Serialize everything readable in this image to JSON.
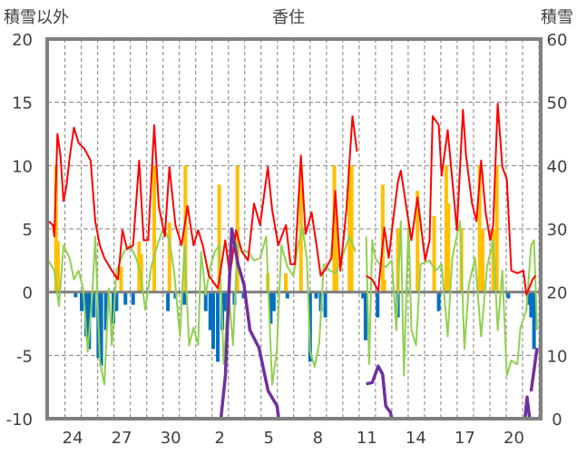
{
  "chart_data": {
    "type": "line",
    "title": "香住",
    "ylabel_left": "積雪以外",
    "ylabel_right": "積雪",
    "ylim_left": [
      -10,
      20
    ],
    "ylim_right": [
      0,
      60
    ],
    "yticks_left": [
      -10,
      -5,
      0,
      5,
      10,
      15,
      20
    ],
    "yticks_right": [
      0,
      10,
      20,
      30,
      40,
      50,
      60
    ],
    "xlim_days": [
      0,
      30.2
    ],
    "xticks": [
      {
        "label": "24",
        "day": 1.56
      },
      {
        "label": "27",
        "day": 4.56
      },
      {
        "label": "30",
        "day": 7.56
      },
      {
        "label": "2",
        "day": 10.56
      },
      {
        "label": "5",
        "day": 13.56
      },
      {
        "label": "8",
        "day": 16.56
      },
      {
        "label": "11",
        "day": 19.56
      },
      {
        "label": "14",
        "day": 22.56
      },
      {
        "label": "17",
        "day": 25.56
      },
      {
        "label": "20",
        "day": 28.56
      }
    ],
    "grid": true,
    "colors": {
      "red": "#ff0000",
      "green": "#92d050",
      "orange": "#ffc000",
      "blue": "#0070c0",
      "purple": "#7030a0",
      "axis": "#808080"
    },
    "series": [
      {
        "name": "red",
        "axis": "left",
        "points": [
          [
            0.07,
            5.6
          ],
          [
            0.35,
            5.3
          ],
          [
            0.44,
            4.4
          ],
          [
            0.63,
            12.5
          ],
          [
            0.81,
            10.8
          ],
          [
            1.0,
            7.2
          ],
          [
            1.18,
            8.4
          ],
          [
            1.37,
            10.6
          ],
          [
            1.64,
            13
          ],
          [
            1.92,
            11.8
          ],
          [
            2.29,
            11.3
          ],
          [
            2.66,
            10.4
          ],
          [
            2.94,
            5.6
          ],
          [
            3.22,
            3.7
          ],
          [
            3.5,
            2.7
          ],
          [
            3.96,
            1.7
          ],
          [
            4.33,
            1
          ],
          [
            4.61,
            4.9
          ],
          [
            4.89,
            3.4
          ],
          [
            5.26,
            3.7
          ],
          [
            5.63,
            10.4
          ],
          [
            5.9,
            4.1
          ],
          [
            6.18,
            4.1
          ],
          [
            6.55,
            13.2
          ],
          [
            6.83,
            6.8
          ],
          [
            7.2,
            4.4
          ],
          [
            7.48,
            9.9
          ],
          [
            7.85,
            5.3
          ],
          [
            8.22,
            3.7
          ],
          [
            8.59,
            6.8
          ],
          [
            8.96,
            3.7
          ],
          [
            9.24,
            4.9
          ],
          [
            9.52,
            3.7
          ],
          [
            9.89,
            1.3
          ],
          [
            10.44,
            0.3
          ],
          [
            10.9,
            4.1
          ],
          [
            11.18,
            1.3
          ],
          [
            11.55,
            4.9
          ],
          [
            11.92,
            3.2
          ],
          [
            12.29,
            2.5
          ],
          [
            12.66,
            7
          ],
          [
            13.03,
            5.3
          ],
          [
            13.5,
            9.9
          ],
          [
            13.77,
            6.5
          ],
          [
            14.14,
            3.7
          ],
          [
            14.61,
            5.3
          ],
          [
            14.89,
            2.2
          ],
          [
            15.16,
            2.2
          ],
          [
            15.53,
            10.8
          ],
          [
            15.81,
            4.6
          ],
          [
            16.18,
            6.3
          ],
          [
            16.46,
            3.9
          ],
          [
            16.74,
            1.3
          ],
          [
            17.11,
            2
          ],
          [
            17.39,
            2.7
          ],
          [
            17.63,
            8
          ],
          [
            17.94,
            1.7
          ],
          [
            18.31,
            6.5
          ],
          [
            18.68,
            13.9
          ],
          [
            18.96,
            11.1
          ],
          null,
          [
            19.52,
            1.3
          ],
          [
            19.89,
            1
          ],
          [
            20.26,
            0.1
          ],
          [
            20.63,
            5.1
          ],
          [
            20.9,
            2.7
          ],
          [
            21.18,
            5.8
          ],
          [
            21.46,
            8.7
          ],
          [
            21.64,
            9.6
          ],
          [
            21.92,
            7.2
          ],
          [
            22.29,
            4.1
          ],
          [
            22.66,
            7.5
          ],
          [
            23.13,
            2.5
          ],
          [
            23.4,
            4.1
          ],
          [
            23.59,
            13.9
          ],
          [
            23.96,
            13.2
          ],
          [
            24.14,
            9.2
          ],
          [
            24.51,
            12.8
          ],
          [
            24.79,
            8.9
          ],
          [
            25.07,
            4.9
          ],
          [
            25.44,
            14.4
          ],
          [
            25.63,
            10.8
          ],
          [
            26.0,
            7
          ],
          [
            26.27,
            5.6
          ],
          [
            26.55,
            10.4
          ],
          [
            26.83,
            6.3
          ],
          [
            27.11,
            4.1
          ],
          [
            27.29,
            5.3
          ],
          [
            27.57,
            14.9
          ],
          [
            27.85,
            9.9
          ],
          [
            28.13,
            8.9
          ],
          [
            28.4,
            1.7
          ],
          [
            28.77,
            1.5
          ],
          [
            29.14,
            1.7
          ],
          [
            29.33,
            -0.2
          ],
          [
            29.7,
            1
          ],
          [
            29.89,
            1.3
          ]
        ]
      },
      {
        "name": "green",
        "axis": "left",
        "points": [
          [
            0.07,
            2.5
          ],
          [
            0.44,
            1.7
          ],
          [
            0.72,
            -1.1
          ],
          [
            1.0,
            3.7
          ],
          [
            1.37,
            2.7
          ],
          [
            1.64,
            1
          ],
          [
            1.92,
            1.7
          ],
          [
            2.2,
            0.3
          ],
          [
            2.48,
            -4.7
          ],
          [
            2.76,
            -0.2
          ],
          [
            2.94,
            4.4
          ],
          [
            3.22,
            -5.4
          ],
          [
            3.5,
            -7.3
          ],
          [
            3.77,
            0.3
          ],
          [
            3.96,
            -4.2
          ],
          [
            4.24,
            1.7
          ],
          [
            4.7,
            3.2
          ],
          [
            5.07,
            3.7
          ],
          [
            5.44,
            2.7
          ],
          [
            5.72,
            1.5
          ],
          [
            6.0,
            -1.4
          ],
          [
            6.37,
            2
          ],
          [
            6.74,
            3.7
          ],
          [
            7.11,
            5.1
          ],
          [
            7.48,
            4.1
          ],
          [
            7.76,
            1.7
          ],
          [
            8.13,
            -3.5
          ],
          [
            8.4,
            3.7
          ],
          [
            8.68,
            -4.2
          ],
          [
            8.96,
            -2.8
          ],
          [
            9.24,
            -4.2
          ],
          [
            9.42,
            3.2
          ],
          [
            9.7,
            -0.2
          ],
          [
            9.98,
            2
          ],
          [
            10.26,
            3.2
          ],
          [
            10.53,
            3.7
          ],
          [
            10.81,
            -5.7
          ],
          [
            11.09,
            0.3
          ],
          [
            11.37,
            -4.2
          ],
          [
            11.64,
            3.9
          ],
          [
            11.92,
            3.2
          ],
          [
            12.29,
            3.2
          ],
          [
            12.66,
            2.5
          ],
          [
            13.03,
            2.7
          ],
          [
            13.4,
            4.4
          ],
          [
            13.77,
            -7.3
          ],
          [
            14.05,
            -4.7
          ],
          [
            14.33,
            3.7
          ],
          [
            14.7,
            2
          ],
          [
            15.07,
            1.3
          ],
          [
            15.35,
            3.7
          ],
          [
            15.63,
            5.1
          ],
          [
            15.9,
            2.5
          ],
          [
            16.09,
            -4.7
          ],
          [
            16.37,
            -5.9
          ],
          [
            16.65,
            -4
          ],
          [
            16.92,
            2.2
          ],
          [
            17.3,
            1.7
          ],
          [
            17.66,
            1.5
          ],
          [
            18.03,
            2.7
          ],
          [
            18.5,
            4.4
          ],
          [
            18.87,
            3.2
          ],
          null,
          [
            19.52,
            4.4
          ],
          [
            19.7,
            -5.7
          ],
          [
            19.89,
            4.1
          ],
          [
            20.07,
            2.7
          ],
          [
            20.35,
            2.2
          ],
          [
            20.72,
            2
          ],
          [
            21.09,
            2.5
          ],
          [
            21.37,
            -3
          ],
          [
            21.64,
            5.6
          ],
          [
            21.83,
            -6.6
          ],
          [
            22.11,
            5.7
          ],
          [
            22.29,
            -3
          ],
          [
            22.57,
            -4.2
          ],
          [
            22.85,
            2.2
          ],
          [
            23.4,
            2.5
          ],
          [
            23.77,
            1.7
          ],
          [
            24.14,
            2.2
          ],
          [
            24.51,
            -3.5
          ],
          [
            24.79,
            2.7
          ],
          [
            25.26,
            5.6
          ],
          [
            25.53,
            -4.5
          ],
          [
            25.81,
            0.6
          ],
          [
            26.18,
            2.7
          ],
          [
            26.55,
            -3.5
          ],
          [
            26.92,
            2
          ],
          [
            27.29,
            4.1
          ],
          [
            27.57,
            -3
          ],
          [
            27.85,
            1.7
          ],
          [
            28.13,
            -6.6
          ],
          [
            28.4,
            -5.4
          ],
          [
            28.77,
            -5.7
          ],
          [
            28.96,
            -2.8
          ],
          [
            29.33,
            -1.4
          ],
          [
            29.61,
            3.7
          ],
          [
            29.79,
            4.1
          ],
          [
            29.98,
            -3
          ]
        ]
      },
      {
        "name": "purple",
        "axis": "right",
        "points": [
          [
            0,
            0
          ],
          [
            10.63,
            0
          ],
          [
            10.91,
            6.9
          ],
          [
            11.1,
            18.8
          ],
          [
            11.3,
            30
          ],
          [
            11.67,
            24.5
          ],
          [
            12.04,
            21.2
          ],
          [
            12.41,
            14
          ],
          [
            12.96,
            11.2
          ],
          [
            13.52,
            4.4
          ],
          [
            14.07,
            2
          ],
          [
            14.17,
            0
          ],
          [
            18.96,
            0
          ],
          null,
          [
            19.52,
            5.5
          ],
          [
            19.89,
            5.7
          ],
          [
            20.26,
            8.3
          ],
          [
            20.53,
            7
          ],
          [
            20.72,
            2
          ],
          [
            21.0,
            1
          ],
          [
            21.09,
            0
          ],
          [
            29.24,
            0
          ],
          [
            29.37,
            3.4
          ],
          [
            29.52,
            0
          ],
          null,
          [
            29.61,
            4.3
          ],
          [
            29.98,
            11.2
          ]
        ]
      }
    ],
    "bars": [
      {
        "name": "orange",
        "axis": "left",
        "points": [
          [
            0.54,
            10
          ],
          [
            0.66,
            4
          ],
          [
            4.52,
            2
          ],
          [
            5.63,
            4
          ],
          [
            5.76,
            3
          ],
          [
            6.55,
            10
          ],
          [
            7.48,
            5.5
          ],
          [
            8.46,
            10
          ],
          [
            10.53,
            8.5
          ],
          [
            11.64,
            10
          ],
          [
            13.5,
            1.5
          ],
          [
            14.6,
            1.5
          ],
          [
            15.53,
            10
          ],
          [
            17.57,
            10
          ],
          [
            17.7,
            6
          ],
          [
            18.5,
            10
          ],
          [
            18.63,
            10
          ],
          [
            20.53,
            8.5
          ],
          [
            20.63,
            1
          ],
          [
            21.46,
            5
          ],
          [
            22.66,
            8
          ],
          [
            23.68,
            6
          ],
          [
            24.42,
            10
          ],
          [
            24.55,
            7
          ],
          [
            25.35,
            5
          ],
          [
            26.46,
            10
          ],
          [
            26.65,
            5
          ],
          [
            27.29,
            5
          ],
          [
            27.52,
            10
          ]
        ]
      },
      {
        "name": "blue",
        "axis": "left",
        "points": [
          [
            1.74,
            -0.4
          ],
          [
            2.11,
            -1.5
          ],
          [
            2.39,
            -3.5
          ],
          [
            2.57,
            -4.5
          ],
          [
            2.85,
            -2
          ],
          [
            3.13,
            -5.2
          ],
          [
            3.31,
            -5.8
          ],
          [
            3.59,
            -3
          ],
          [
            4.05,
            -2.5
          ],
          [
            4.24,
            -1.5
          ],
          [
            4.79,
            -1
          ],
          [
            5.26,
            -1
          ],
          [
            7.39,
            -1.5
          ],
          [
            7.85,
            -0.5
          ],
          [
            8.4,
            -1
          ],
          [
            9.7,
            -1.5
          ],
          [
            9.98,
            -3
          ],
          [
            10.16,
            -4.5
          ],
          [
            10.44,
            -5.5
          ],
          [
            10.72,
            -3
          ],
          [
            10.9,
            -1.5
          ],
          [
            11.46,
            -1
          ],
          [
            12.02,
            -0.5
          ],
          [
            13.68,
            -2.5
          ],
          [
            13.87,
            -1.5
          ],
          [
            14.7,
            -0.5
          ],
          [
            16.09,
            -5.5
          ],
          [
            16.46,
            -0.5
          ],
          [
            16.74,
            -1.5
          ],
          [
            17.02,
            -2
          ],
          [
            19.33,
            -0.5
          ],
          [
            19.48,
            -3.8
          ],
          [
            20.22,
            -2
          ],
          [
            21.46,
            -2
          ],
          [
            23.96,
            -1.5
          ],
          [
            28.22,
            -0.5
          ],
          [
            29.42,
            -1
          ],
          [
            29.61,
            -2
          ],
          [
            29.79,
            -4.5
          ]
        ]
      }
    ]
  }
}
